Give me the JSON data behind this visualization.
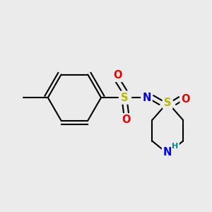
{
  "bg_color": "#ebebeb",
  "bond_color": "#000000",
  "bond_width": 1.5,
  "atom_colors": {
    "S_ring": "#b8b800",
    "S_sulfonyl": "#b8b800",
    "N": "#0000ee",
    "O": "#ee0000",
    "NH": "#008888",
    "H": "#008888"
  },
  "font_size_atoms": 10.5,
  "font_size_small": 8
}
